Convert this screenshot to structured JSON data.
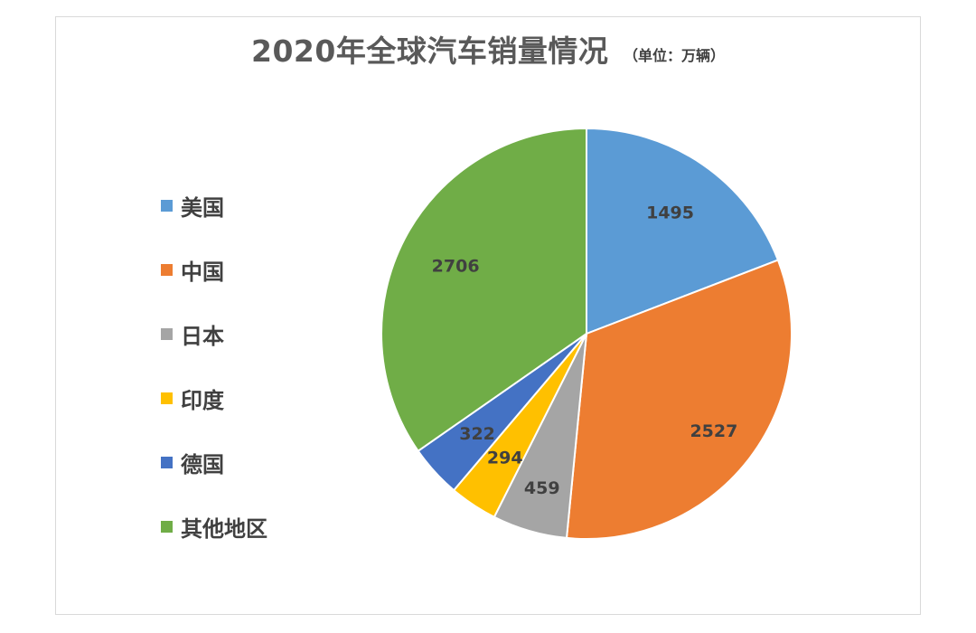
{
  "chart_data": {
    "type": "pie",
    "title": "2020年全球汽车销量情况",
    "subtitle": "（单位：万辆）",
    "categories": [
      "美国",
      "中国",
      "日本",
      "印度",
      "德国",
      "其他地区"
    ],
    "values": [
      1495,
      2527,
      459,
      294,
      322,
      2706
    ],
    "colors": [
      "#5b9bd5",
      "#ed7d31",
      "#a5a5a5",
      "#ffc000",
      "#4472c4",
      "#70ad47"
    ],
    "data_labels": [
      "1495",
      "2527",
      "459",
      "294",
      "322",
      "2706"
    ],
    "legend_position": "left",
    "start_angle_deg": 0,
    "direction": "clockwise"
  }
}
